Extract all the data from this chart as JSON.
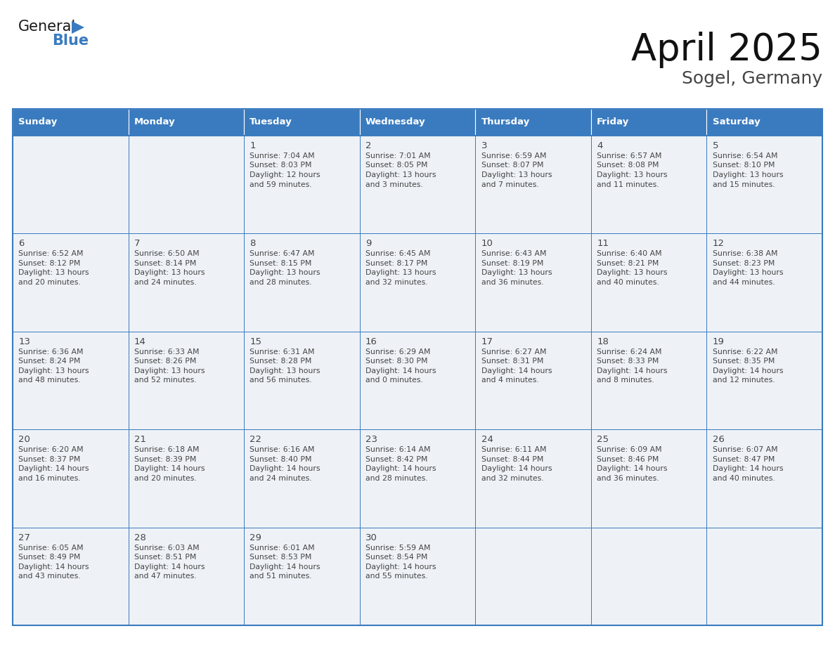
{
  "title": "April 2025",
  "subtitle": "Sogel, Germany",
  "header_bg": "#3a7bbf",
  "header_text_color": "#ffffff",
  "cell_bg": "#f0f4f8",
  "border_color": "#3a7bbf",
  "text_color": "#333333",
  "days_of_week": [
    "Sunday",
    "Monday",
    "Tuesday",
    "Wednesday",
    "Thursday",
    "Friday",
    "Saturday"
  ],
  "weeks": [
    [
      {
        "day": "",
        "info": ""
      },
      {
        "day": "",
        "info": ""
      },
      {
        "day": "1",
        "info": "Sunrise: 7:04 AM\nSunset: 8:03 PM\nDaylight: 12 hours\nand 59 minutes."
      },
      {
        "day": "2",
        "info": "Sunrise: 7:01 AM\nSunset: 8:05 PM\nDaylight: 13 hours\nand 3 minutes."
      },
      {
        "day": "3",
        "info": "Sunrise: 6:59 AM\nSunset: 8:07 PM\nDaylight: 13 hours\nand 7 minutes."
      },
      {
        "day": "4",
        "info": "Sunrise: 6:57 AM\nSunset: 8:08 PM\nDaylight: 13 hours\nand 11 minutes."
      },
      {
        "day": "5",
        "info": "Sunrise: 6:54 AM\nSunset: 8:10 PM\nDaylight: 13 hours\nand 15 minutes."
      }
    ],
    [
      {
        "day": "6",
        "info": "Sunrise: 6:52 AM\nSunset: 8:12 PM\nDaylight: 13 hours\nand 20 minutes."
      },
      {
        "day": "7",
        "info": "Sunrise: 6:50 AM\nSunset: 8:14 PM\nDaylight: 13 hours\nand 24 minutes."
      },
      {
        "day": "8",
        "info": "Sunrise: 6:47 AM\nSunset: 8:15 PM\nDaylight: 13 hours\nand 28 minutes."
      },
      {
        "day": "9",
        "info": "Sunrise: 6:45 AM\nSunset: 8:17 PM\nDaylight: 13 hours\nand 32 minutes."
      },
      {
        "day": "10",
        "info": "Sunrise: 6:43 AM\nSunset: 8:19 PM\nDaylight: 13 hours\nand 36 minutes."
      },
      {
        "day": "11",
        "info": "Sunrise: 6:40 AM\nSunset: 8:21 PM\nDaylight: 13 hours\nand 40 minutes."
      },
      {
        "day": "12",
        "info": "Sunrise: 6:38 AM\nSunset: 8:23 PM\nDaylight: 13 hours\nand 44 minutes."
      }
    ],
    [
      {
        "day": "13",
        "info": "Sunrise: 6:36 AM\nSunset: 8:24 PM\nDaylight: 13 hours\nand 48 minutes."
      },
      {
        "day": "14",
        "info": "Sunrise: 6:33 AM\nSunset: 8:26 PM\nDaylight: 13 hours\nand 52 minutes."
      },
      {
        "day": "15",
        "info": "Sunrise: 6:31 AM\nSunset: 8:28 PM\nDaylight: 13 hours\nand 56 minutes."
      },
      {
        "day": "16",
        "info": "Sunrise: 6:29 AM\nSunset: 8:30 PM\nDaylight: 14 hours\nand 0 minutes."
      },
      {
        "day": "17",
        "info": "Sunrise: 6:27 AM\nSunset: 8:31 PM\nDaylight: 14 hours\nand 4 minutes."
      },
      {
        "day": "18",
        "info": "Sunrise: 6:24 AM\nSunset: 8:33 PM\nDaylight: 14 hours\nand 8 minutes."
      },
      {
        "day": "19",
        "info": "Sunrise: 6:22 AM\nSunset: 8:35 PM\nDaylight: 14 hours\nand 12 minutes."
      }
    ],
    [
      {
        "day": "20",
        "info": "Sunrise: 6:20 AM\nSunset: 8:37 PM\nDaylight: 14 hours\nand 16 minutes."
      },
      {
        "day": "21",
        "info": "Sunrise: 6:18 AM\nSunset: 8:39 PM\nDaylight: 14 hours\nand 20 minutes."
      },
      {
        "day": "22",
        "info": "Sunrise: 6:16 AM\nSunset: 8:40 PM\nDaylight: 14 hours\nand 24 minutes."
      },
      {
        "day": "23",
        "info": "Sunrise: 6:14 AM\nSunset: 8:42 PM\nDaylight: 14 hours\nand 28 minutes."
      },
      {
        "day": "24",
        "info": "Sunrise: 6:11 AM\nSunset: 8:44 PM\nDaylight: 14 hours\nand 32 minutes."
      },
      {
        "day": "25",
        "info": "Sunrise: 6:09 AM\nSunset: 8:46 PM\nDaylight: 14 hours\nand 36 minutes."
      },
      {
        "day": "26",
        "info": "Sunrise: 6:07 AM\nSunset: 8:47 PM\nDaylight: 14 hours\nand 40 minutes."
      }
    ],
    [
      {
        "day": "27",
        "info": "Sunrise: 6:05 AM\nSunset: 8:49 PM\nDaylight: 14 hours\nand 43 minutes."
      },
      {
        "day": "28",
        "info": "Sunrise: 6:03 AM\nSunset: 8:51 PM\nDaylight: 14 hours\nand 47 minutes."
      },
      {
        "day": "29",
        "info": "Sunrise: 6:01 AM\nSunset: 8:53 PM\nDaylight: 14 hours\nand 51 minutes."
      },
      {
        "day": "30",
        "info": "Sunrise: 5:59 AM\nSunset: 8:54 PM\nDaylight: 14 hours\nand 55 minutes."
      },
      {
        "day": "",
        "info": ""
      },
      {
        "day": "",
        "info": ""
      },
      {
        "day": "",
        "info": ""
      }
    ]
  ]
}
